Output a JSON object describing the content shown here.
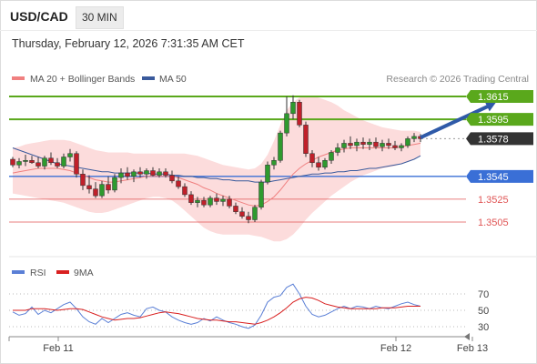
{
  "header": {
    "pair": "USD/CAD",
    "timeframe": "30 MIN",
    "datetime": "Thursday, February 12, 2026 7:31:35 AM CET"
  },
  "legend": {
    "ma20": "MA 20 + Bollinger Bands",
    "ma50": "MA 50",
    "credit": "Research © 2026 Trading Central",
    "rsi": "RSI",
    "rsi_ma": "9MA"
  },
  "colors": {
    "resistance": "#5aa81c",
    "current": "#333333",
    "pivot": "#3a6fd6",
    "support": "#e05555",
    "ma20": "#f08080",
    "ma50": "#3a5a9c",
    "bollinger_fill": "#fcdcdc",
    "bull": "#2e9a2e",
    "bear": "#c0202a",
    "arrow": "#2f5aa8",
    "rsi": "#5a7fd6",
    "rsi_ma": "#d92020"
  },
  "chart_data": {
    "type": "candlestick",
    "price_range": [
      1.349,
      1.363
    ],
    "levels": [
      {
        "label": "1.3615",
        "value": 1.3615,
        "kind": "resistance"
      },
      {
        "label": "1.3595",
        "value": 1.3595,
        "kind": "resistance"
      },
      {
        "label": "1.3578",
        "value": 1.3578,
        "kind": "current"
      },
      {
        "label": "1.3545",
        "value": 1.3545,
        "kind": "pivot"
      },
      {
        "label": "1.3525",
        "value": 1.3525,
        "kind": "support"
      },
      {
        "label": "1.3505",
        "value": 1.3505,
        "kind": "support"
      }
    ],
    "x_labels": [
      "Feb 11",
      "Feb 12",
      "Feb 13"
    ],
    "x_label_positions": [
      8,
      61,
      73
    ],
    "candles": [
      [
        1.356,
        1.3562,
        1.3553,
        1.3555
      ],
      [
        1.3555,
        1.3561,
        1.3552,
        1.3558
      ],
      [
        1.3558,
        1.3564,
        1.3554,
        1.3559
      ],
      [
        1.3559,
        1.3563,
        1.3556,
        1.3557
      ],
      [
        1.3557,
        1.3562,
        1.3552,
        1.3554
      ],
      [
        1.3554,
        1.3563,
        1.3551,
        1.3561
      ],
      [
        1.3561,
        1.3566,
        1.3555,
        1.3557
      ],
      [
        1.3557,
        1.3561,
        1.3552,
        1.3554
      ],
      [
        1.3554,
        1.3565,
        1.3552,
        1.3562
      ],
      [
        1.3562,
        1.3569,
        1.3558,
        1.3565
      ],
      [
        1.3565,
        1.3567,
        1.3544,
        1.3547
      ],
      [
        1.3547,
        1.3551,
        1.3533,
        1.3537
      ],
      [
        1.3537,
        1.3546,
        1.353,
        1.3534
      ],
      [
        1.3534,
        1.354,
        1.3526,
        1.3528
      ],
      [
        1.3528,
        1.3541,
        1.3526,
        1.3538
      ],
      [
        1.3538,
        1.3545,
        1.353,
        1.3533
      ],
      [
        1.3533,
        1.3547,
        1.3531,
        1.3544
      ],
      [
        1.3544,
        1.3552,
        1.3539,
        1.3548
      ],
      [
        1.3548,
        1.3553,
        1.3542,
        1.3545
      ],
      [
        1.3545,
        1.3551,
        1.354,
        1.3549
      ],
      [
        1.3549,
        1.3553,
        1.3544,
        1.3547
      ],
      [
        1.3547,
        1.3552,
        1.3543,
        1.355
      ],
      [
        1.355,
        1.3553,
        1.3545,
        1.3546
      ],
      [
        1.3546,
        1.3552,
        1.3544,
        1.3549
      ],
      [
        1.3549,
        1.3552,
        1.3544,
        1.3546
      ],
      [
        1.3546,
        1.355,
        1.3539,
        1.3541
      ],
      [
        1.3541,
        1.3545,
        1.3534,
        1.3536
      ],
      [
        1.3536,
        1.3539,
        1.3527,
        1.3529
      ],
      [
        1.3529,
        1.3532,
        1.352,
        1.3522
      ],
      [
        1.3522,
        1.3527,
        1.3518,
        1.3524
      ],
      [
        1.3524,
        1.3527,
        1.3518,
        1.352
      ],
      [
        1.352,
        1.3528,
        1.3518,
        1.3526
      ],
      [
        1.3526,
        1.353,
        1.352,
        1.3523
      ],
      [
        1.3523,
        1.3528,
        1.3519,
        1.3525
      ],
      [
        1.3525,
        1.3528,
        1.3517,
        1.3519
      ],
      [
        1.3519,
        1.3522,
        1.3512,
        1.3514
      ],
      [
        1.3514,
        1.3518,
        1.3508,
        1.351
      ],
      [
        1.351,
        1.3514,
        1.3504,
        1.3507
      ],
      [
        1.3507,
        1.352,
        1.3505,
        1.3518
      ],
      [
        1.3518,
        1.3542,
        1.3516,
        1.354
      ],
      [
        1.354,
        1.3558,
        1.3538,
        1.3555
      ],
      [
        1.3555,
        1.3562,
        1.3551,
        1.3559
      ],
      [
        1.3559,
        1.3585,
        1.3557,
        1.3583
      ],
      [
        1.3583,
        1.3615,
        1.358,
        1.36
      ],
      [
        1.36,
        1.3616,
        1.3595,
        1.361
      ],
      [
        1.361,
        1.3612,
        1.3588,
        1.359
      ],
      [
        1.359,
        1.3593,
        1.3562,
        1.3565
      ],
      [
        1.3565,
        1.3568,
        1.3553,
        1.3557
      ],
      [
        1.3557,
        1.3562,
        1.355,
        1.3553
      ],
      [
        1.3553,
        1.3561,
        1.3551,
        1.3559
      ],
      [
        1.3559,
        1.3568,
        1.3556,
        1.3566
      ],
      [
        1.3566,
        1.3574,
        1.3563,
        1.357
      ],
      [
        1.357,
        1.3577,
        1.3566,
        1.3574
      ],
      [
        1.3574,
        1.358,
        1.3569,
        1.3572
      ],
      [
        1.3572,
        1.3578,
        1.3567,
        1.3575
      ],
      [
        1.3575,
        1.3579,
        1.3569,
        1.3573
      ],
      [
        1.3573,
        1.3578,
        1.3568,
        1.3575
      ],
      [
        1.3575,
        1.3579,
        1.3569,
        1.3571
      ],
      [
        1.3571,
        1.3577,
        1.3567,
        1.3574
      ],
      [
        1.3574,
        1.3578,
        1.3569,
        1.3572
      ],
      [
        1.3572,
        1.3576,
        1.3568,
        1.357
      ],
      [
        1.357,
        1.3574,
        1.3567,
        1.3572
      ],
      [
        1.3572,
        1.358,
        1.357,
        1.3578
      ],
      [
        1.3578,
        1.3583,
        1.3575,
        1.358
      ],
      [
        1.358,
        1.3582,
        1.3575,
        1.3578
      ]
    ],
    "ma20": [
      1.3548,
      1.3549,
      1.355,
      1.3551,
      1.3552,
      1.3552,
      1.3552,
      1.3552,
      1.3551,
      1.355,
      1.3548,
      1.3546,
      1.3544,
      1.3542,
      1.3541,
      1.354,
      1.354,
      1.3541,
      1.3542,
      1.3543,
      1.3544,
      1.3545,
      1.3545,
      1.3545,
      1.3545,
      1.3545,
      1.3544,
      1.3542,
      1.354,
      1.3538,
      1.3535,
      1.3533,
      1.353,
      1.3528,
      1.3526,
      1.3524,
      1.3522,
      1.352,
      1.3519,
      1.352,
      1.3523,
      1.3527,
      1.3533,
      1.354,
      1.3547,
      1.3552,
      1.3556,
      1.3559,
      1.3562,
      1.3564,
      1.3566,
      1.3568,
      1.3569,
      1.357,
      1.357,
      1.357,
      1.357,
      1.357,
      1.357,
      1.357,
      1.357,
      1.3571,
      1.3572,
      1.3573,
      1.3574
    ],
    "bb_upper": [
      1.357,
      1.3571,
      1.3573,
      1.3574,
      1.3575,
      1.3576,
      1.3577,
      1.3577,
      1.3577,
      1.3576,
      1.3574,
      1.3572,
      1.357,
      1.3568,
      1.3567,
      1.3566,
      1.3566,
      1.3566,
      1.3566,
      1.3565,
      1.3565,
      1.3565,
      1.3565,
      1.3565,
      1.3565,
      1.3565,
      1.3565,
      1.3565,
      1.3564,
      1.3563,
      1.3561,
      1.3559,
      1.3557,
      1.3555,
      1.3554,
      1.3553,
      1.3552,
      1.3551,
      1.3552,
      1.3556,
      1.3564,
      1.3576,
      1.359,
      1.3603,
      1.361,
      1.3614,
      1.3615,
      1.3615,
      1.3614,
      1.3612,
      1.361,
      1.3607,
      1.3603,
      1.36,
      1.3597,
      1.3594,
      1.3592,
      1.359,
      1.3588,
      1.3587,
      1.3586,
      1.3585,
      1.3585,
      1.3585,
      1.3584
    ],
    "bb_lower": [
      1.353,
      1.3529,
      1.3528,
      1.3527,
      1.3526,
      1.3525,
      1.3524,
      1.3523,
      1.3522,
      1.352,
      1.3518,
      1.3516,
      1.3514,
      1.3513,
      1.3513,
      1.3514,
      1.3516,
      1.3518,
      1.352,
      1.3522,
      1.3524,
      1.3526,
      1.3527,
      1.3527,
      1.3526,
      1.3524,
      1.352,
      1.3515,
      1.351,
      1.3505,
      1.35,
      1.3497,
      1.3495,
      1.3494,
      1.3494,
      1.3494,
      1.3494,
      1.3494,
      1.3493,
      1.3492,
      1.349,
      1.3488,
      1.3488,
      1.349,
      1.3494,
      1.35,
      1.3507,
      1.3513,
      1.3518,
      1.3523,
      1.3528,
      1.3532,
      1.3536,
      1.354,
      1.3543,
      1.3546,
      1.3548,
      1.355,
      1.3552,
      1.3553,
      1.3554,
      1.3556,
      1.3558,
      1.356,
      1.3563
    ],
    "ma50": [
      1.357,
      1.3568,
      1.3566,
      1.3564,
      1.3562,
      1.356,
      1.3558,
      1.3556,
      1.3555,
      1.3554,
      1.3553,
      1.3552,
      1.3551,
      1.355,
      1.3549,
      1.3549,
      1.3548,
      1.3548,
      1.3548,
      1.3548,
      1.3548,
      1.3548,
      1.3547,
      1.3547,
      1.3547,
      1.3546,
      1.3546,
      1.3545,
      1.3545,
      1.3544,
      1.3544,
      1.3543,
      1.3543,
      1.3542,
      1.3542,
      1.3541,
      1.3541,
      1.3541,
      1.354,
      1.354,
      1.354,
      1.3541,
      1.3542,
      1.3543,
      1.3544,
      1.3545,
      1.3546,
      1.3547,
      1.3547,
      1.3548,
      1.3548,
      1.3549,
      1.3549,
      1.355,
      1.355,
      1.3551,
      1.3552,
      1.3552,
      1.3553,
      1.3554,
      1.3555,
      1.3556,
      1.3558,
      1.356,
      1.3563
    ],
    "projection": {
      "from_index": 64,
      "from_price": 1.3579,
      "to_index": 76,
      "to_price": 1.3611
    },
    "rsi": {
      "ticks": [
        70,
        50,
        30
      ],
      "range": [
        20,
        85
      ],
      "rsi": [
        48,
        44,
        46,
        54,
        45,
        50,
        47,
        52,
        57,
        60,
        52,
        42,
        36,
        33,
        40,
        35,
        40,
        45,
        47,
        44,
        42,
        52,
        54,
        50,
        48,
        42,
        38,
        35,
        33,
        35,
        40,
        37,
        42,
        38,
        35,
        33,
        30,
        28,
        32,
        44,
        60,
        66,
        68,
        78,
        82,
        70,
        55,
        45,
        42,
        44,
        48,
        52,
        55,
        52,
        55,
        54,
        52,
        55,
        53,
        52,
        55,
        58,
        60,
        57,
        55
      ],
      "ma9": [
        50,
        50,
        50,
        52,
        52,
        52,
        51,
        50,
        51,
        52,
        52,
        51,
        48,
        45,
        42,
        40,
        38,
        39,
        40,
        40,
        41,
        43,
        45,
        47,
        48,
        47,
        46,
        44,
        42,
        40,
        39,
        38,
        38,
        37,
        36,
        36,
        35,
        34,
        33,
        35,
        38,
        42,
        47,
        53,
        60,
        64,
        66,
        65,
        62,
        58,
        56,
        54,
        53,
        52,
        52,
        52,
        52,
        52,
        53,
        53,
        53,
        54,
        55,
        55,
        55
      ]
    }
  }
}
